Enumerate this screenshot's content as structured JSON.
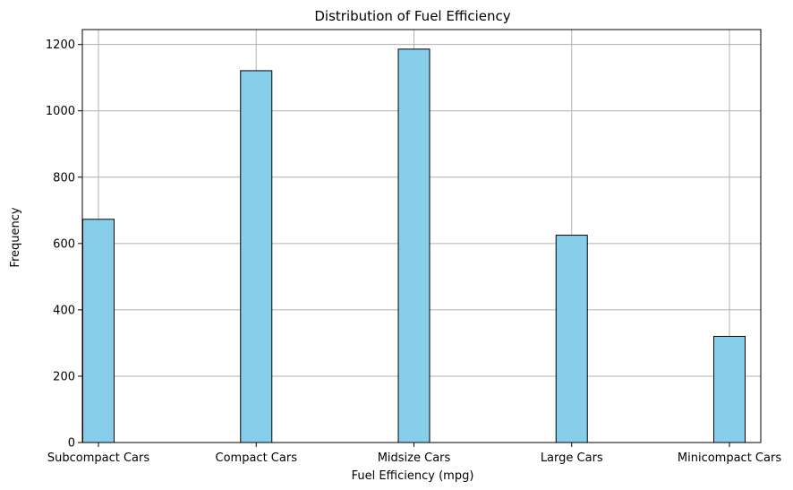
{
  "chart_data": {
    "type": "bar",
    "title": "Distribution of Fuel Efficiency",
    "xlabel": "Fuel Efficiency (mpg)",
    "ylabel": "Frequency",
    "categories": [
      "Subcompact Cars",
      "Compact Cars",
      "Midsize Cars",
      "Large Cars",
      "Minicompact Cars"
    ],
    "values": [
      673,
      1121,
      1186,
      625,
      320
    ],
    "yticks": [
      0,
      200,
      400,
      600,
      800,
      1000,
      1200
    ],
    "ylim": [
      0,
      1245
    ],
    "grid": true,
    "bar_color": "#87CEEB",
    "edge_color": "#000000",
    "grid_color": "#b0b0b0"
  }
}
